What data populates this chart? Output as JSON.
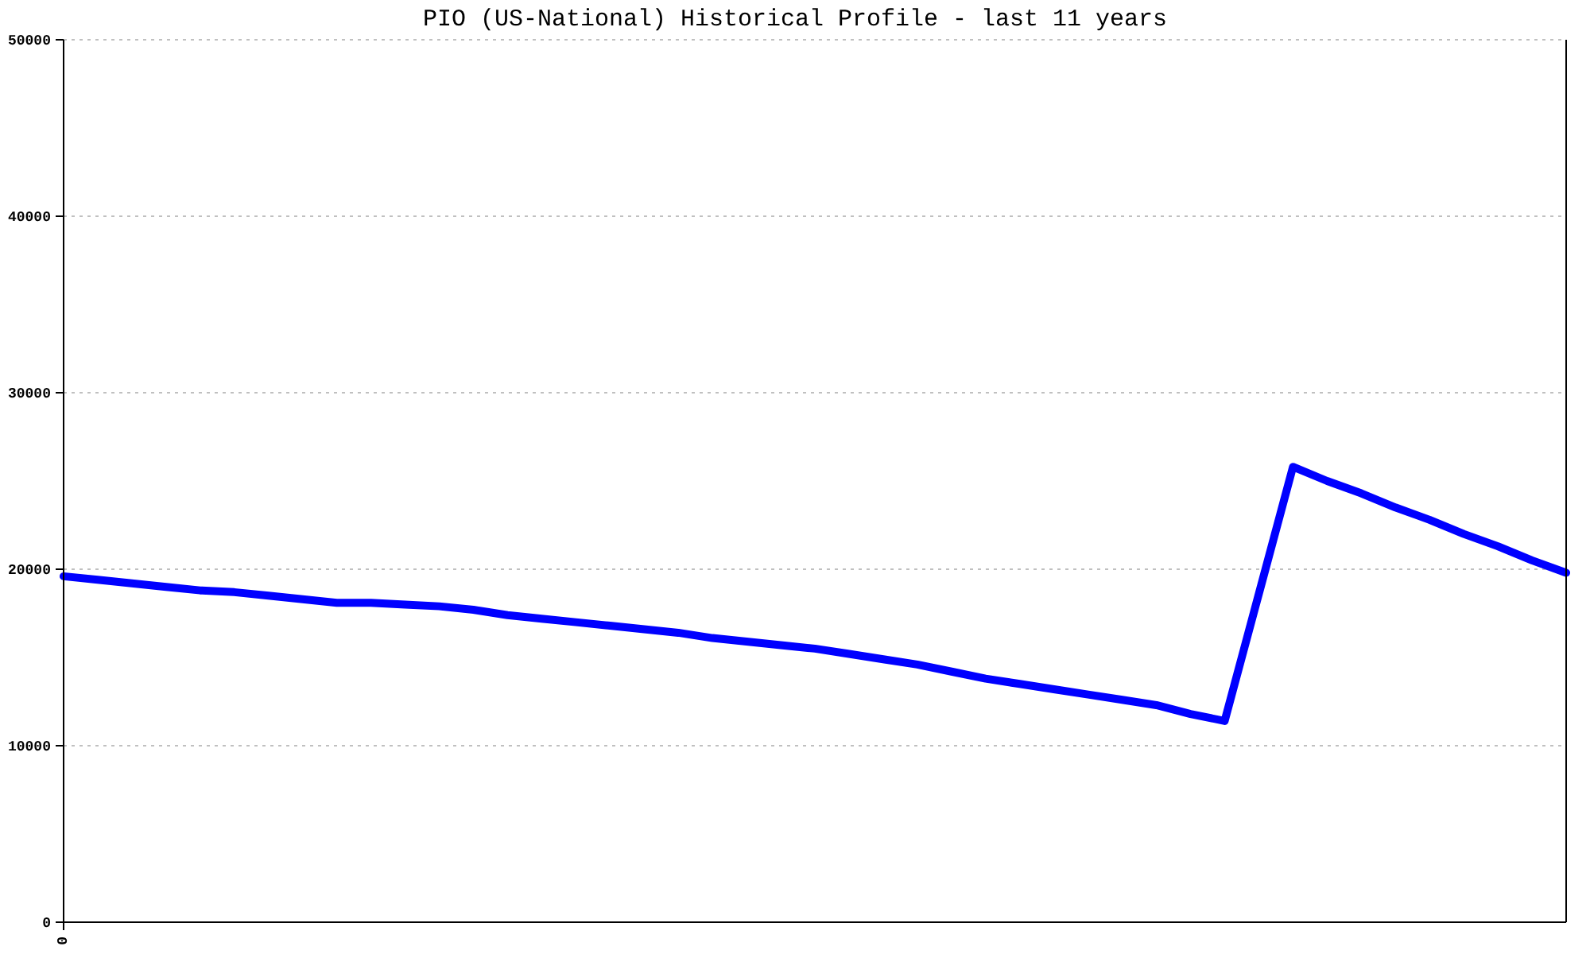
{
  "chart_data": {
    "type": "line",
    "title": "PIO (US-National) Historical Profile - last 11 years",
    "categories": [
      "0",
      null,
      null,
      null,
      null,
      null,
      null,
      null,
      null,
      null,
      null,
      null,
      null,
      null,
      null,
      null,
      null,
      null,
      null,
      null,
      null,
      null,
      null,
      null,
      null,
      null,
      null,
      null,
      null,
      null,
      null,
      null,
      null,
      null,
      null,
      null,
      null,
      null,
      null,
      null,
      null,
      null,
      null,
      null,
      null
    ],
    "series": [
      {
        "color": "#0000ff",
        "values": [
          19600,
          19400,
          19200,
          19000,
          18800,
          18700,
          18500,
          18300,
          18100,
          18100,
          18000,
          17900,
          17700,
          17400,
          17200,
          17000,
          16800,
          16600,
          16400,
          16100,
          15900,
          15700,
          15500,
          15200,
          14900,
          14600,
          14200,
          13800,
          13500,
          13200,
          12900,
          12600,
          12300,
          11800,
          11400,
          18600,
          25800,
          25000,
          24300,
          23500,
          22800,
          22000,
          21300,
          20500,
          19800
        ]
      }
    ],
    "ylim": [
      0,
      50000
    ],
    "yticks": [
      0,
      10000,
      20000,
      30000,
      40000,
      50000
    ],
    "grid": "y",
    "marker": "none",
    "line_style": "solid"
  }
}
